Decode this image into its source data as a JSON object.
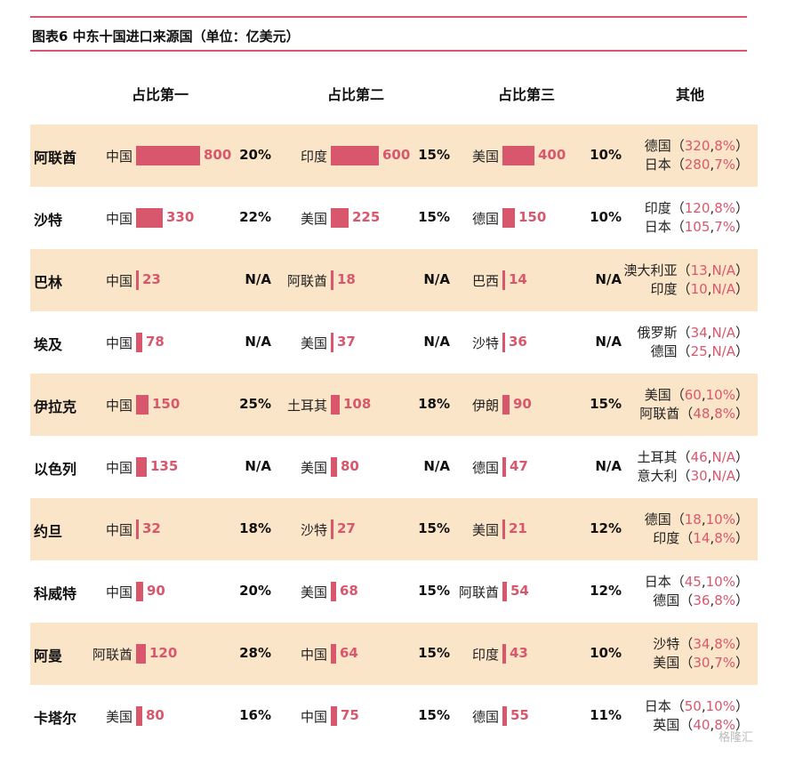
{
  "title": "图表6  中东十国进口来源国（单位：亿美元）",
  "columns": [
    "占比第一",
    "占比第二",
    "占比第三",
    "其他"
  ],
  "watermark": "格隆汇",
  "chart_data": {
    "type": "table",
    "title": "图表6  中东十国进口来源国（单位：亿美元）",
    "max_value": 800,
    "rows": [
      {
        "country": "阿联酋",
        "shaded": true,
        "first": {
          "partner": "中国",
          "value": 800,
          "value_label": "800",
          "share": "20%"
        },
        "second": {
          "partner": "印度",
          "value": 600,
          "value_label": "600",
          "share": "15%"
        },
        "third": {
          "partner": "美国",
          "value": 400,
          "value_label": "400",
          "share": "10%"
        },
        "others": [
          {
            "name": "德国",
            "value": "320",
            "share": "8%"
          },
          {
            "name": "日本",
            "value": "280",
            "share": "7%"
          }
        ]
      },
      {
        "country": "沙特",
        "shaded": false,
        "first": {
          "partner": "中国",
          "value": 330,
          "value_label": "330",
          "share": "22%"
        },
        "second": {
          "partner": "美国",
          "value": 225,
          "value_label": "225",
          "share": "15%"
        },
        "third": {
          "partner": "德国",
          "value": 150,
          "value_label": "150",
          "share": "10%"
        },
        "others": [
          {
            "name": "印度",
            "value": "120",
            "share": "8%"
          },
          {
            "name": "日本",
            "value": "105",
            "share": "7%"
          }
        ]
      },
      {
        "country": "巴林",
        "shaded": true,
        "first": {
          "partner": "中国",
          "value": 23,
          "value_label": "23",
          "share": "N/A"
        },
        "second": {
          "partner": "阿联酋",
          "value": 18,
          "value_label": "18",
          "share": "N/A"
        },
        "third": {
          "partner": "巴西",
          "value": 14,
          "value_label": "14",
          "share": "N/A"
        },
        "others": [
          {
            "name": "澳大利亚",
            "value": "13",
            "share": "N/A"
          },
          {
            "name": "印度",
            "value": "10",
            "share": "N/A"
          }
        ]
      },
      {
        "country": "埃及",
        "shaded": false,
        "first": {
          "partner": "中国",
          "value": 78,
          "value_label": "78",
          "share": "N/A"
        },
        "second": {
          "partner": "美国",
          "value": 37,
          "value_label": "37",
          "share": "N/A"
        },
        "third": {
          "partner": "沙特",
          "value": 36,
          "value_label": "36",
          "share": "N/A"
        },
        "others": [
          {
            "name": "俄罗斯",
            "value": "34",
            "share": "N/A"
          },
          {
            "name": "德国",
            "value": "25",
            "share": "N/A"
          }
        ]
      },
      {
        "country": "伊拉克",
        "shaded": true,
        "first": {
          "partner": "中国",
          "value": 150,
          "value_label": "150",
          "share": "25%"
        },
        "second": {
          "partner": "土耳其",
          "value": 108,
          "value_label": "108",
          "share": "18%"
        },
        "third": {
          "partner": "伊朗",
          "value": 90,
          "value_label": "90",
          "share": "15%"
        },
        "others": [
          {
            "name": "美国",
            "value": "60",
            "share": "10%"
          },
          {
            "name": "阿联酋",
            "value": "48",
            "share": "8%"
          }
        ]
      },
      {
        "country": "以色列",
        "shaded": false,
        "first": {
          "partner": "中国",
          "value": 135,
          "value_label": "135",
          "share": "N/A"
        },
        "second": {
          "partner": "美国",
          "value": 80,
          "value_label": "80",
          "share": "N/A"
        },
        "third": {
          "partner": "德国",
          "value": 47,
          "value_label": "47",
          "share": "N/A"
        },
        "others": [
          {
            "name": "土耳其",
            "value": "46",
            "share": "N/A"
          },
          {
            "name": "意大利",
            "value": "30",
            "share": "N/A"
          }
        ]
      },
      {
        "country": "约旦",
        "shaded": true,
        "first": {
          "partner": "中国",
          "value": 32,
          "value_label": "32",
          "share": "18%"
        },
        "second": {
          "partner": "沙特",
          "value": 27,
          "value_label": "27",
          "share": "15%"
        },
        "third": {
          "partner": "美国",
          "value": 21,
          "value_label": "21",
          "share": "12%"
        },
        "others": [
          {
            "name": "德国",
            "value": "18",
            "share": "10%"
          },
          {
            "name": "印度",
            "value": "14",
            "share": "8%"
          }
        ]
      },
      {
        "country": "科威特",
        "shaded": false,
        "first": {
          "partner": "中国",
          "value": 90,
          "value_label": "90",
          "share": "20%"
        },
        "second": {
          "partner": "美国",
          "value": 68,
          "value_label": "68",
          "share": "15%"
        },
        "third": {
          "partner": "阿联酋",
          "value": 54,
          "value_label": "54",
          "share": "12%"
        },
        "others": [
          {
            "name": "日本",
            "value": "45",
            "share": "10%"
          },
          {
            "name": "德国",
            "value": "36",
            "share": "8%"
          }
        ]
      },
      {
        "country": "阿曼",
        "shaded": true,
        "first": {
          "partner": "阿联酋",
          "value": 120,
          "value_label": "120",
          "share": "28%"
        },
        "second": {
          "partner": "中国",
          "value": 64,
          "value_label": "64",
          "share": "15%"
        },
        "third": {
          "partner": "印度",
          "value": 43,
          "value_label": "43",
          "share": "10%"
        },
        "others": [
          {
            "name": "沙特",
            "value": "34",
            "share": "8%"
          },
          {
            "name": "美国",
            "value": "30",
            "share": "7%"
          }
        ]
      },
      {
        "country": "卡塔尔",
        "shaded": false,
        "first": {
          "partner": "美国",
          "value": 80,
          "value_label": "80",
          "share": "16%"
        },
        "second": {
          "partner": "中国",
          "value": 75,
          "value_label": "75",
          "share": "15%"
        },
        "third": {
          "partner": "德国",
          "value": 55,
          "value_label": "55",
          "share": "11%"
        },
        "others": [
          {
            "name": "日本",
            "value": "50",
            "share": "10%"
          },
          {
            "name": "英国",
            "value": "40",
            "share": "8%"
          }
        ]
      }
    ]
  }
}
